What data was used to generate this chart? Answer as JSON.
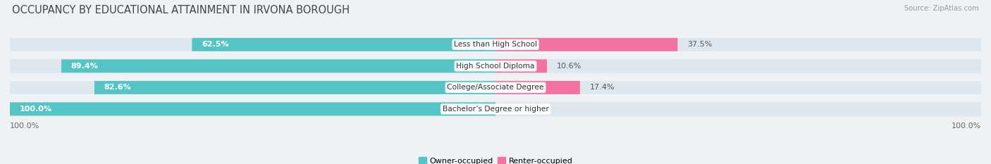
{
  "title": "OCCUPANCY BY EDUCATIONAL ATTAINMENT IN IRVONA BOROUGH",
  "source": "Source: ZipAtlas.com",
  "categories": [
    "Less than High School",
    "High School Diploma",
    "College/Associate Degree",
    "Bachelor’s Degree or higher"
  ],
  "owner_pct": [
    62.5,
    89.4,
    82.6,
    100.0
  ],
  "renter_pct": [
    37.5,
    10.6,
    17.4,
    0.0
  ],
  "owner_color": "#54c4c4",
  "renter_color": "#f472a0",
  "bg_color": "#eef2f5",
  "bar_bg_color": "#dde7ed",
  "row_bg_even": "#e8eef2",
  "row_bg_odd": "#f2f5f8",
  "title_fontsize": 10.5,
  "label_fontsize": 8,
  "tick_fontsize": 8,
  "bar_height": 0.62,
  "total_width": 100,
  "left_label": "100.0%",
  "right_label": "100.0%"
}
